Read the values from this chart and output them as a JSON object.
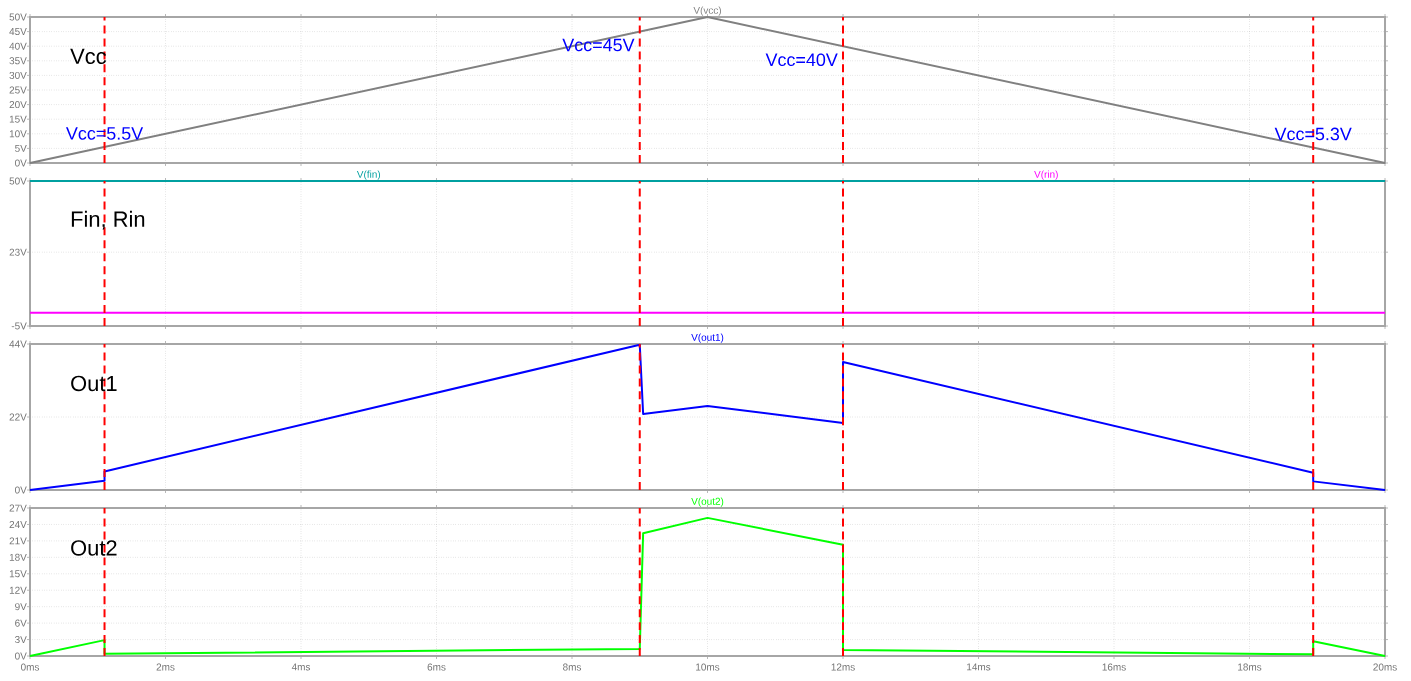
{
  "chart_data": [
    {
      "type": "line",
      "title": "Vcc",
      "xlim": [
        0,
        20
      ],
      "ylim": [
        0,
        50
      ],
      "xticks": [
        0,
        2,
        4,
        6,
        8,
        10,
        12,
        14,
        16,
        18,
        20
      ],
      "yticks": [
        {
          "value": 0,
          "label": "0V"
        },
        {
          "value": 5,
          "label": "5V"
        },
        {
          "value": 10,
          "label": "10V"
        },
        {
          "value": 15,
          "label": "15V"
        },
        {
          "value": 20,
          "label": "20V"
        },
        {
          "value": 25,
          "label": "25V"
        },
        {
          "value": 30,
          "label": "30V"
        },
        {
          "value": 35,
          "label": "35V"
        },
        {
          "value": 40,
          "label": "40V"
        },
        {
          "value": 45,
          "label": "45V"
        },
        {
          "value": 50,
          "label": "50V"
        }
      ],
      "tick_labels": "y",
      "grid": true,
      "series": [
        {
          "name": "V(vcc)",
          "color": "#808080",
          "x": [
            0,
            10,
            20
          ],
          "values": [
            0,
            50,
            0
          ]
        }
      ],
      "ref_lines": [
        {
          "axis": "x",
          "value": 1.1,
          "color": "#ff0000",
          "line_style": "dashed"
        },
        {
          "axis": "x",
          "value": 9,
          "color": "#ff0000",
          "line_style": "dashed"
        },
        {
          "axis": "x",
          "value": 12,
          "color": "#ff0000",
          "line_style": "dashed"
        },
        {
          "axis": "x",
          "value": 18.94,
          "color": "#ff0000",
          "line_style": "dashed"
        }
      ],
      "annotations": [
        {
          "text": "Vcc=5.5V",
          "x": 1.1,
          "y": 5.5
        },
        {
          "text": "Vcc=45V",
          "x": 9,
          "y": 45
        },
        {
          "text": "Vcc=40V",
          "x": 12,
          "y": 40
        },
        {
          "text": "Vcc=5.3V",
          "x": 18.94,
          "y": 5.3
        }
      ]
    },
    {
      "type": "line",
      "title": "Fin, Rin",
      "xlim": [
        0,
        20
      ],
      "ylim": [
        -5,
        50
      ],
      "xticks": [
        0,
        2,
        4,
        6,
        8,
        10,
        12,
        14,
        16,
        18,
        20
      ],
      "yticks": [
        {
          "value": -5,
          "label": "-5V"
        },
        {
          "value": 23,
          "label": "23V"
        },
        {
          "value": 50,
          "label": "50V"
        }
      ],
      "tick_labels": "y",
      "grid": true,
      "series": [
        {
          "name": "V(fin)",
          "color": "#00a0a0",
          "x": [
            0,
            20
          ],
          "values": [
            50,
            50
          ]
        },
        {
          "name": "V(rin)",
          "color": "#ff00ff",
          "x": [
            0,
            20
          ],
          "values": [
            0,
            0
          ]
        }
      ],
      "ref_lines": [
        {
          "axis": "x",
          "value": 1.1,
          "color": "#ff0000",
          "line_style": "dashed"
        },
        {
          "axis": "x",
          "value": 9,
          "color": "#ff0000",
          "line_style": "dashed"
        },
        {
          "axis": "x",
          "value": 12,
          "color": "#ff0000",
          "line_style": "dashed"
        },
        {
          "axis": "x",
          "value": 18.94,
          "color": "#ff0000",
          "line_style": "dashed"
        }
      ]
    },
    {
      "type": "line",
      "title": "Out1",
      "xlim": [
        0,
        20
      ],
      "ylim": [
        0,
        44
      ],
      "xticks": [
        0,
        2,
        4,
        6,
        8,
        10,
        12,
        14,
        16,
        18,
        20
      ],
      "yticks": [
        {
          "value": 0,
          "label": "0V"
        },
        {
          "value": 22,
          "label": "22V"
        },
        {
          "value": 44,
          "label": "44V"
        }
      ],
      "tick_labels": "y",
      "grid": true,
      "series": [
        {
          "name": "V(out1)",
          "color": "#0000ff",
          "x": [
            0,
            1.1,
            1.1,
            9,
            9.05,
            10,
            12,
            12,
            18.94,
            18.94,
            20
          ],
          "values": [
            0,
            2.8,
            5.6,
            43.8,
            22.9,
            25.3,
            20.2,
            38.6,
            5.2,
            2.6,
            0
          ]
        }
      ],
      "ref_lines": [
        {
          "axis": "x",
          "value": 1.1,
          "color": "#ff0000",
          "line_style": "dashed"
        },
        {
          "axis": "x",
          "value": 9,
          "color": "#ff0000",
          "line_style": "dashed"
        },
        {
          "axis": "x",
          "value": 12,
          "color": "#ff0000",
          "line_style": "dashed"
        },
        {
          "axis": "x",
          "value": 18.94,
          "color": "#ff0000",
          "line_style": "dashed"
        }
      ]
    },
    {
      "type": "line",
      "title": "Out2",
      "xlim": [
        0,
        20
      ],
      "ylim": [
        0,
        27
      ],
      "xticks": [
        {
          "value": 0,
          "label": "0ms"
        },
        {
          "value": 2,
          "label": "2ms"
        },
        {
          "value": 4,
          "label": "4ms"
        },
        {
          "value": 6,
          "label": "6ms"
        },
        {
          "value": 8,
          "label": "8ms"
        },
        {
          "value": 10,
          "label": "10ms"
        },
        {
          "value": 12,
          "label": "12ms"
        },
        {
          "value": 14,
          "label": "14ms"
        },
        {
          "value": 16,
          "label": "16ms"
        },
        {
          "value": 18,
          "label": "18ms"
        },
        {
          "value": 20,
          "label": "20ms"
        }
      ],
      "yticks": [
        {
          "value": 0,
          "label": "0V"
        },
        {
          "value": 3,
          "label": "3V"
        },
        {
          "value": 6,
          "label": "6V"
        },
        {
          "value": 9,
          "label": "9V"
        },
        {
          "value": 12,
          "label": "12V"
        },
        {
          "value": 15,
          "label": "15V"
        },
        {
          "value": 18,
          "label": "18V"
        },
        {
          "value": 21,
          "label": "21V"
        },
        {
          "value": 24,
          "label": "24V"
        },
        {
          "value": 27,
          "label": "27V"
        }
      ],
      "grid": true,
      "series": [
        {
          "name": "V(out2)",
          "color": "#00ff00",
          "x": [
            0,
            1.1,
            1.1,
            9,
            9.05,
            10,
            12,
            12,
            18.94,
            18.94,
            20
          ],
          "values": [
            0,
            2.9,
            0.4,
            1.3,
            22.4,
            25.2,
            20.3,
            1.1,
            0.3,
            2.7,
            0
          ]
        }
      ],
      "ref_lines": [
        {
          "axis": "x",
          "value": 1.1,
          "color": "#ff0000",
          "line_style": "dashed"
        },
        {
          "axis": "x",
          "value": 9,
          "color": "#ff0000",
          "line_style": "dashed"
        },
        {
          "axis": "x",
          "value": 12,
          "color": "#ff0000",
          "line_style": "dashed"
        },
        {
          "axis": "x",
          "value": 18.94,
          "color": "#ff0000",
          "line_style": "dashed"
        }
      ]
    }
  ]
}
